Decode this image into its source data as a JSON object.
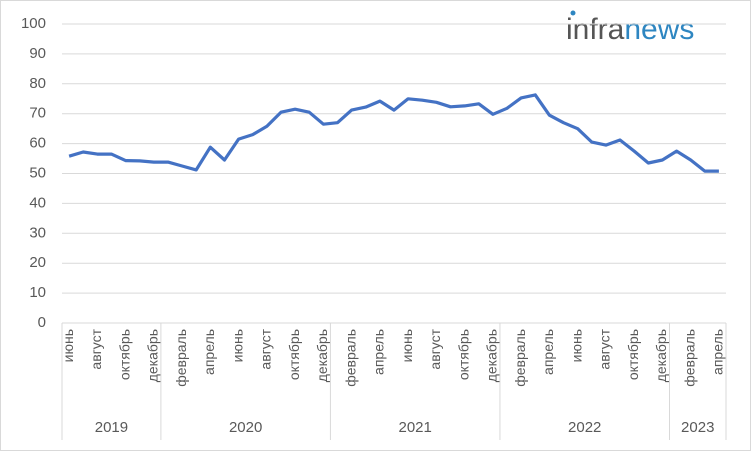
{
  "chart_data": {
    "type": "line",
    "logo": [
      "infra",
      "news"
    ],
    "categories": [
      "июнь",
      null,
      "август",
      null,
      "октябрь",
      null,
      "декабрь",
      null,
      "февраль",
      null,
      "апрель",
      null,
      "июнь",
      null,
      "август",
      null,
      "октябрь",
      null,
      "декабрь",
      null,
      "февраль",
      null,
      "апрель",
      null,
      "июнь",
      null,
      "август",
      null,
      "октябрь",
      null,
      "декабрь",
      null,
      "февраль",
      null,
      "апрель",
      null,
      "июнь",
      null,
      "август",
      null,
      "октябрь",
      null,
      "декабрь",
      null,
      "февраль",
      null,
      "апрель"
    ],
    "year_groups": [
      {
        "label": "2019",
        "months": 7
      },
      {
        "label": "2020",
        "months": 12
      },
      {
        "label": "2021",
        "months": 12
      },
      {
        "label": "2022",
        "months": 12
      },
      {
        "label": "2023",
        "months": 4
      }
    ],
    "series": [
      {
        "color": "#4472c4",
        "values": [
          55.8,
          57.2,
          56.5,
          56.5,
          54.3,
          54.2,
          53.8,
          53.8,
          52.5,
          51.2,
          58.8,
          54.5,
          61.5,
          63,
          65.8,
          70.5,
          71.5,
          70.5,
          66.5,
          67,
          71.2,
          72.2,
          74.2,
          71.2,
          75,
          74.5,
          73.8,
          72.3,
          72.6,
          73.3,
          69.8,
          71.8,
          75.3,
          76.3,
          69.5,
          67,
          65,
          60.5,
          59.5,
          61.2,
          57.5,
          53.5,
          54.5,
          57.5,
          54.5,
          50.8,
          50.8
        ]
      }
    ],
    "ylim": [
      0,
      100
    ],
    "yticks": [
      0,
      10,
      20,
      30,
      40,
      50,
      60,
      70,
      80,
      90,
      100
    ],
    "grid": true
  }
}
